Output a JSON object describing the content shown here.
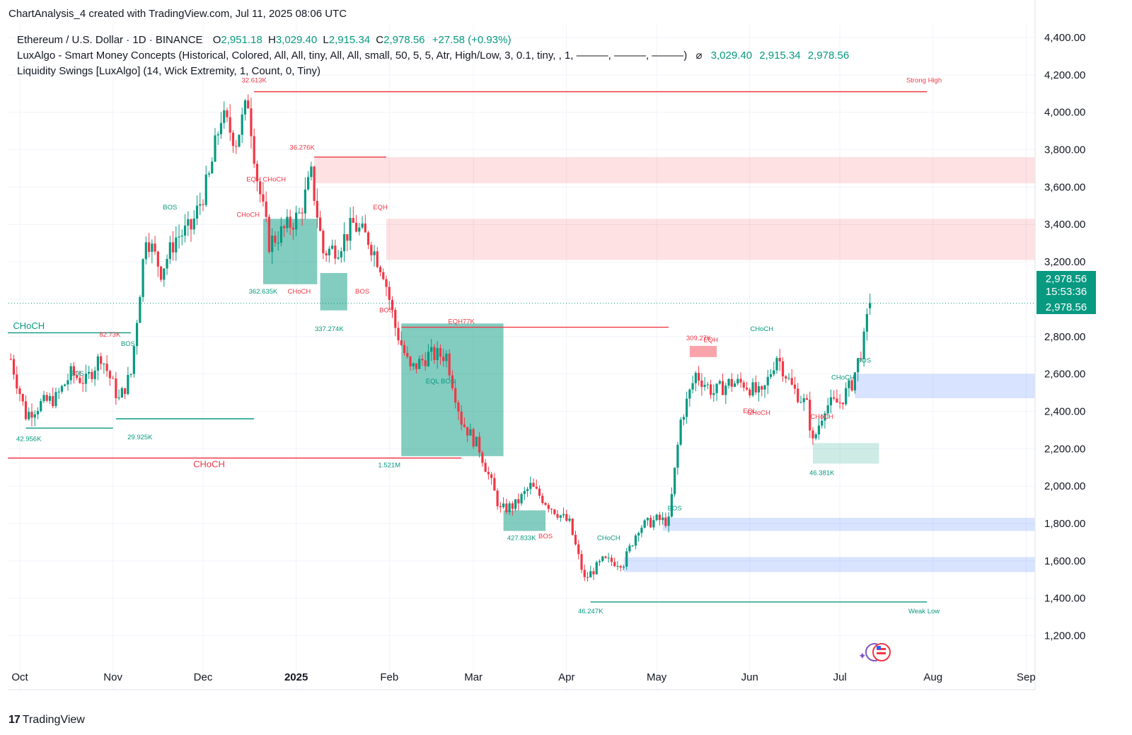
{
  "header": {
    "created_by": "ChartAnalysis_4 created with TradingView.com, Jul 11, 2025 08:06 UTC"
  },
  "legend": {
    "symbol": "Ethereum / U.S. Dollar · 1D · BINANCE",
    "o_label": "O",
    "o_value": "2,951.18",
    "h_label": "H",
    "h_value": "3,029.40",
    "l_label": "L",
    "l_value": "2,915.34",
    "c_label": "C",
    "c_value": "2,978.56",
    "change": "+27.58 (+0.93%)",
    "indicator1": "LuxAlgo - Smart Money Concepts (Historical, Colored, All, All, tiny, All, All, small, 50, 5, 5, Atr, High/Low, 3, 0.1, tiny, , 1, ———, ———, ———)",
    "indicator1_eye": "⌀",
    "indicator1_v1": "3,029.40",
    "indicator1_v2": "2,915.34",
    "indicator1_v3": "2,978.56",
    "indicator2": "Liquidity Swings [LuxAlgo] (14, Wick Extremity, 1, Count, 0, Tiny)"
  },
  "price_badge": {
    "price": "2,978.56",
    "countdown": "15:53:36",
    "price2": "2,978.56"
  },
  "footer": {
    "brand": "TradingView",
    "logo_text": "17"
  },
  "colors": {
    "up": "#089981",
    "down": "#f23645",
    "bull_zone": "#2962ff",
    "bear_zone": "#f23645",
    "grid": "#f0f3fa"
  },
  "chart_data": {
    "type": "candlestick",
    "symbol": "ETHUSD",
    "ylim": [
      1000,
      4500
    ],
    "y_ticks": [
      1200,
      1400,
      1600,
      1800,
      2000,
      2200,
      2400,
      2600,
      2800,
      3000,
      3200,
      3400,
      3600,
      3800,
      4000,
      4200,
      4400
    ],
    "y_tick_labels": [
      "1,200.00",
      "1,400.00",
      "1,600.00",
      "1,800.00",
      "2,000.00",
      "2,200.00",
      "2,400.00",
      "2,600.00",
      "2,800.00",
      "3,000.00",
      "3,200.00",
      "3,400.00",
      "3,600.00",
      "3,800.00",
      "4,000.00",
      "4,200.00",
      "4,400.00"
    ],
    "x_ticks": [
      {
        "label": "Oct",
        "date": "2024-10-01"
      },
      {
        "label": "Nov",
        "date": "2024-11-01"
      },
      {
        "label": "Dec",
        "date": "2024-12-01"
      },
      {
        "label": "2025",
        "date": "2025-01-01",
        "bold": true
      },
      {
        "label": "Feb",
        "date": "2025-02-01"
      },
      {
        "label": "Mar",
        "date": "2025-03-01"
      },
      {
        "label": "Apr",
        "date": "2025-04-01"
      },
      {
        "label": "May",
        "date": "2025-05-01"
      },
      {
        "label": "Jun",
        "date": "2025-06-01"
      },
      {
        "label": "Jul",
        "date": "2025-07-01"
      },
      {
        "label": "Aug",
        "date": "2025-08-01"
      },
      {
        "label": "Sep",
        "date": "2025-09-01"
      }
    ],
    "price_path": [
      [
        "2024-09-28",
        2680
      ],
      [
        "2024-10-03",
        2380
      ],
      [
        "2024-10-08",
        2440
      ],
      [
        "2024-10-13",
        2470
      ],
      [
        "2024-10-18",
        2600
      ],
      [
        "2024-10-23",
        2560
      ],
      [
        "2024-10-28",
        2700
      ],
      [
        "2024-11-03",
        2460
      ],
      [
        "2024-11-07",
        2600
      ],
      [
        "2024-11-12",
        3350
      ],
      [
        "2024-11-17",
        3150
      ],
      [
        "2024-11-22",
        3330
      ],
      [
        "2024-11-27",
        3380
      ],
      [
        "2024-12-03",
        3650
      ],
      [
        "2024-12-07",
        3980
      ],
      [
        "2024-12-12",
        3850
      ],
      [
        "2024-12-16",
        4060
      ],
      [
        "2024-12-19",
        3650
      ],
      [
        "2024-12-23",
        3300
      ],
      [
        "2024-12-28",
        3370
      ],
      [
        "2025-01-02",
        3450
      ],
      [
        "2025-01-06",
        3660
      ],
      [
        "2025-01-10",
        3250
      ],
      [
        "2025-01-15",
        3280
      ],
      [
        "2025-01-20",
        3400
      ],
      [
        "2025-01-25",
        3320
      ],
      [
        "2025-01-30",
        3150
      ],
      [
        "2025-02-03",
        2850
      ],
      [
        "2025-02-08",
        2620
      ],
      [
        "2025-02-14",
        2700
      ],
      [
        "2025-02-20",
        2700
      ],
      [
        "2025-02-25",
        2350
      ],
      [
        "2025-03-03",
        2200
      ],
      [
        "2025-03-10",
        1870
      ],
      [
        "2025-03-15",
        1900
      ],
      [
        "2025-03-20",
        2000
      ],
      [
        "2025-03-26",
        1900
      ],
      [
        "2025-04-02",
        1800
      ],
      [
        "2025-04-07",
        1500
      ],
      [
        "2025-04-13",
        1600
      ],
      [
        "2025-04-20",
        1590
      ],
      [
        "2025-04-25",
        1780
      ],
      [
        "2025-05-01",
        1820
      ],
      [
        "2025-05-05",
        1810
      ],
      [
        "2025-05-09",
        2350
      ],
      [
        "2025-05-14",
        2600
      ],
      [
        "2025-05-20",
        2500
      ],
      [
        "2025-05-25",
        2550
      ],
      [
        "2025-05-30",
        2550
      ],
      [
        "2025-06-05",
        2480
      ],
      [
        "2025-06-10",
        2700
      ],
      [
        "2025-06-15",
        2530
      ],
      [
        "2025-06-20",
        2430
      ],
      [
        "2025-06-22",
        2230
      ],
      [
        "2025-06-26",
        2430
      ],
      [
        "2025-07-01",
        2450
      ],
      [
        "2025-07-05",
        2550
      ],
      [
        "2025-07-09",
        2780
      ],
      [
        "2025-07-11",
        2978.56
      ]
    ],
    "current_price": 2978.56,
    "zones": [
      {
        "kind": "bear",
        "from": "2025-01-07",
        "to": "2025-09-05",
        "low": 3620,
        "high": 3760
      },
      {
        "kind": "bear",
        "from": "2025-01-31",
        "to": "2025-09-05",
        "low": 3210,
        "high": 3430
      },
      {
        "kind": "bull",
        "from": "2025-07-06",
        "to": "2025-09-05",
        "low": 2470,
        "high": 2600
      },
      {
        "kind": "bull",
        "from": "2025-05-03",
        "to": "2025-09-05",
        "low": 1760,
        "high": 1830
      },
      {
        "kind": "bull",
        "from": "2025-04-20",
        "to": "2025-09-05",
        "low": 1540,
        "high": 1620
      },
      {
        "kind": "bull",
        "from": "2024-12-21",
        "to": "2025-01-08",
        "low": 3080,
        "high": 3430
      },
      {
        "kind": "bull",
        "from": "2025-01-09",
        "to": "2025-01-18",
        "low": 2940,
        "high": 3140
      },
      {
        "kind": "bull",
        "from": "2025-02-05",
        "to": "2025-03-11",
        "low": 2160,
        "high": 2870
      },
      {
        "kind": "bull",
        "from": "2025-03-11",
        "to": "2025-03-25",
        "low": 1760,
        "high": 1870
      },
      {
        "kind": "bull_light",
        "from": "2025-06-22",
        "to": "2025-07-14",
        "low": 2120,
        "high": 2230
      },
      {
        "kind": "bear_solid",
        "from": "2025-05-12",
        "to": "2025-05-21",
        "low": 2690,
        "high": 2750
      }
    ],
    "levels": [
      {
        "kind": "bear",
        "from": "2024-12-18",
        "to": "2025-07-30",
        "price": 4110
      },
      {
        "kind": "bear",
        "from": "2025-01-07",
        "to": "2025-01-31",
        "price": 3760
      },
      {
        "kind": "bear",
        "from": "2025-02-05",
        "to": "2025-05-05",
        "price": 2850
      },
      {
        "kind": "bear",
        "from": "2024-09-27",
        "to": "2025-02-25",
        "price": 2150
      },
      {
        "kind": "bull",
        "from": "2024-09-27",
        "to": "2024-11-07",
        "price": 2820
      },
      {
        "kind": "bull",
        "from": "2024-10-03",
        "to": "2024-11-01",
        "price": 2310
      },
      {
        "kind": "bull",
        "from": "2024-11-02",
        "to": "2024-12-18",
        "price": 2360
      },
      {
        "kind": "bull",
        "from": "2025-04-09",
        "to": "2025-07-30",
        "price": 1380
      }
    ],
    "labels": [
      {
        "text": "32.613K",
        "date": "2024-12-18",
        "price": 4160,
        "color": "down"
      },
      {
        "text": "Strong High",
        "date": "2025-07-29",
        "price": 4160,
        "color": "down"
      },
      {
        "text": "36.276K",
        "date": "2025-01-03",
        "price": 3800,
        "color": "down"
      },
      {
        "text": "EQH CHoCH",
        "date": "2024-12-22",
        "price": 3630,
        "color": "down"
      },
      {
        "text": "CHoCH",
        "date": "2024-12-16",
        "price": 3440,
        "color": "down"
      },
      {
        "text": "BOS",
        "date": "2024-11-20",
        "price": 3480,
        "color": "up"
      },
      {
        "text": "EQH",
        "date": "2025-01-29",
        "price": 3480,
        "color": "down"
      },
      {
        "text": "CHoCH",
        "date": "2025-01-02",
        "price": 3030,
        "color": "down"
      },
      {
        "text": "362.635K",
        "date": "2024-12-21",
        "price": 3030,
        "color": "up"
      },
      {
        "text": "BOS",
        "date": "2025-01-23",
        "price": 3030,
        "color": "down"
      },
      {
        "text": "BOS",
        "date": "2025-01-31",
        "price": 2930,
        "color": "down"
      },
      {
        "text": "337.274K",
        "date": "2025-01-12",
        "price": 2830,
        "color": "up"
      },
      {
        "text": "EQH77K",
        "date": "2025-02-25",
        "price": 2870,
        "color": "down"
      },
      {
        "text": "CHoCH",
        "date": "2024-10-04",
        "price": 2840,
        "color": "up"
      },
      {
        "text": "82.73K",
        "date": "2024-10-31",
        "price": 2800,
        "color": "down"
      },
      {
        "text": "BOS",
        "date": "2024-11-06",
        "price": 2750,
        "color": "up"
      },
      {
        "text": "BOS",
        "date": "2024-10-20",
        "price": 2590,
        "color": "up"
      },
      {
        "text": "EQL BOS",
        "date": "2025-02-18",
        "price": 2550,
        "color": "up"
      },
      {
        "text": "42.956K",
        "date": "2024-10-04",
        "price": 2240,
        "color": "up"
      },
      {
        "text": "29.925K",
        "date": "2024-11-10",
        "price": 2250,
        "color": "up"
      },
      {
        "text": "CHoCH",
        "date": "2024-12-03",
        "price": 2100,
        "color": "down"
      },
      {
        "text": "1.521M",
        "date": "2025-02-01",
        "price": 2100,
        "color": "up"
      },
      {
        "text": "CHoCH",
        "date": "2025-06-05",
        "price": 2830,
        "color": "up"
      },
      {
        "text": "309.27K",
        "date": "2025-05-15",
        "price": 2780,
        "color": "down"
      },
      {
        "text": "EQH",
        "date": "2025-05-19",
        "price": 2770,
        "color": "down"
      },
      {
        "text": "EQL",
        "date": "2025-06-01",
        "price": 2390,
        "color": "down"
      },
      {
        "text": "CHoCH",
        "date": "2025-06-04",
        "price": 2380,
        "color": "down"
      },
      {
        "text": "CHoCH",
        "date": "2025-06-25",
        "price": 2360,
        "color": "down"
      },
      {
        "text": "CHoCH",
        "date": "2025-07-02",
        "price": 2570,
        "color": "up"
      },
      {
        "text": "BOS",
        "date": "2025-07-09",
        "price": 2660,
        "color": "up"
      },
      {
        "text": "46.381K",
        "date": "2025-06-25",
        "price": 2060,
        "color": "up"
      },
      {
        "text": "BOS",
        "date": "2025-05-07",
        "price": 1870,
        "color": "up"
      },
      {
        "text": "BOS",
        "date": "2025-03-25",
        "price": 1720,
        "color": "down"
      },
      {
        "text": "427.833K",
        "date": "2025-03-17",
        "price": 1710,
        "color": "up"
      },
      {
        "text": "CHoCH",
        "date": "2025-04-15",
        "price": 1710,
        "color": "up"
      },
      {
        "text": "46.247K",
        "date": "2025-04-09",
        "price": 1320,
        "color": "up"
      },
      {
        "text": "Weak Low",
        "date": "2025-07-29",
        "price": 1320,
        "color": "up"
      }
    ]
  }
}
